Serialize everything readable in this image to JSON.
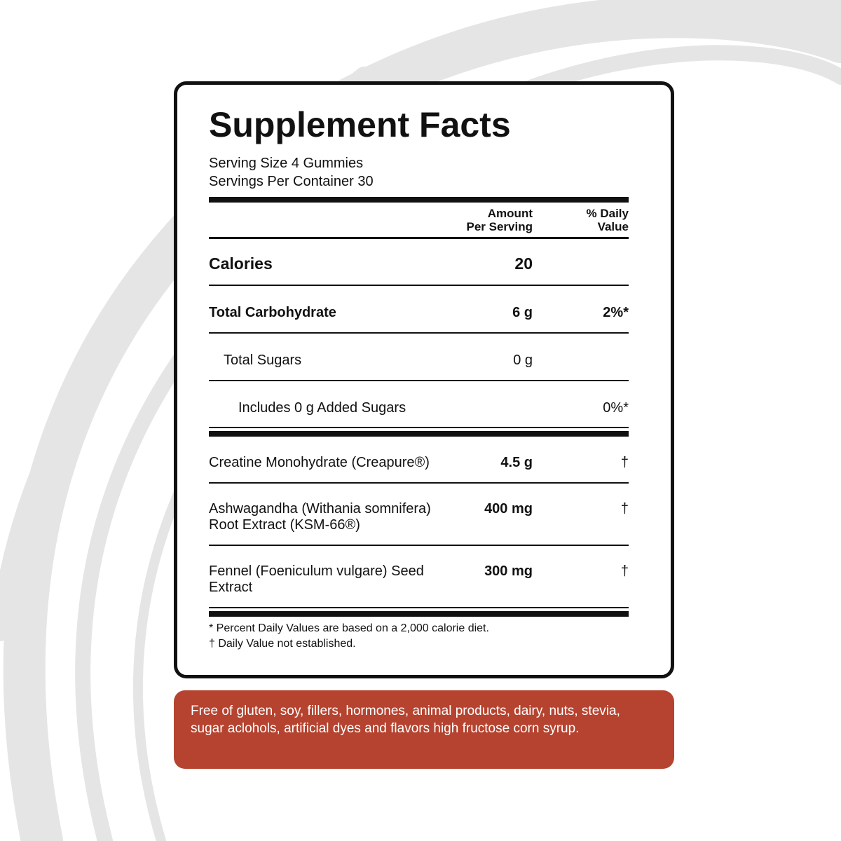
{
  "header": {
    "title": "Supplement Facts",
    "serving_size": "Serving Size 4 Gummies",
    "servings_per_container": "Servings Per Container 30"
  },
  "table": {
    "columns": [
      [
        "Amount",
        "Per Serving"
      ],
      [
        "% Daily",
        "Value"
      ]
    ],
    "rows": [
      {
        "name": [
          "Calories"
        ],
        "amount": "20"
      },
      {
        "name": [
          "Total Carbohydrate"
        ],
        "amount": "6 g",
        "daily_value": "2%*"
      },
      {
        "name": [
          "Total Sugars"
        ],
        "amount": "0 g"
      },
      {
        "name": [
          "Includes 0 g Added Sugars"
        ],
        "daily_value": "0%*"
      },
      {
        "name": [
          "Creatine Monohydrate (Creapure®)"
        ],
        "amount": "4.5 g",
        "daily_value": "†"
      },
      {
        "name": [
          "Ashwagandha (Withania somnifera)",
          "Root Extract (KSM-66®)"
        ],
        "amount": "400 mg",
        "daily_value": "†"
      },
      {
        "name": [
          "Fennel (Foeniculum vulgare) Seed",
          "Extract"
        ],
        "amount": "300 mg",
        "daily_value": "†"
      }
    ]
  },
  "footnotes": [
    "* Percent Daily Values are based on a 2,000 calorie diet.",
    "† Daily Value not established."
  ],
  "banner": [
    "Free of gluten, soy, fillers, hormones, animal products, dairy, nuts, stevia,",
    "sugar aclohols, artificial dyes and flavors high fructose corn syrup."
  ]
}
